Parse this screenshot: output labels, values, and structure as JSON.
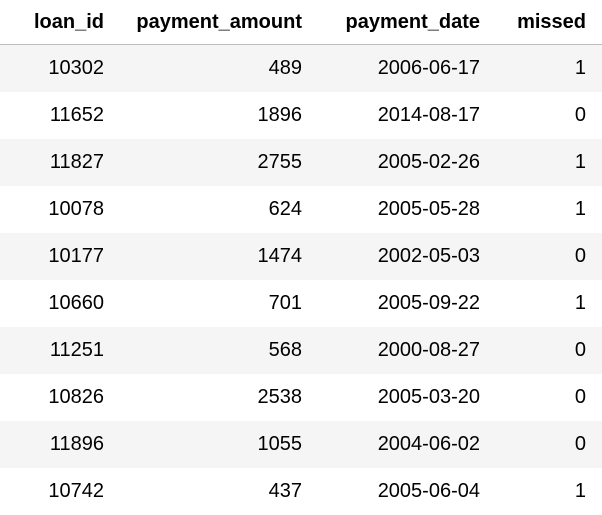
{
  "table": {
    "columns": [
      "loan_id",
      "payment_amount",
      "payment_date",
      "missed"
    ],
    "rows": [
      [
        "10302",
        "489",
        "2006-06-17",
        "1"
      ],
      [
        "11652",
        "1896",
        "2014-08-17",
        "0"
      ],
      [
        "11827",
        "2755",
        "2005-02-26",
        "1"
      ],
      [
        "10078",
        "624",
        "2005-05-28",
        "1"
      ],
      [
        "10177",
        "1474",
        "2002-05-03",
        "0"
      ],
      [
        "10660",
        "701",
        "2005-09-22",
        "1"
      ],
      [
        "11251",
        "568",
        "2000-08-27",
        "0"
      ],
      [
        "10826",
        "2538",
        "2005-03-20",
        "0"
      ],
      [
        "11896",
        "1055",
        "2004-06-02",
        "0"
      ],
      [
        "10742",
        "437",
        "2005-06-04",
        "1"
      ]
    ]
  }
}
